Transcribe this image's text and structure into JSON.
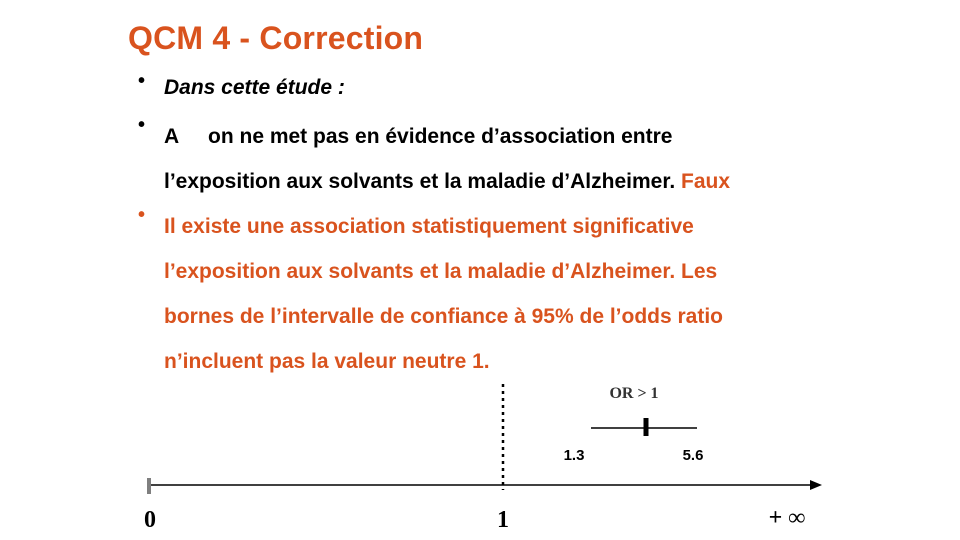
{
  "title": "QCM 4 - Correction",
  "bullets": {
    "b1": "Dans cette étude :",
    "b2_letter": "A",
    "b2_line1": "on ne met pas en évidence d’association entre",
    "b2_line2": "l’exposition aux solvants et la maladie d’Alzheimer.",
    "b2_verdict": "Faux",
    "b3_line1": "Il existe une association statistiquement significative",
    "b3_line2": "l’exposition aux solvants et la maladie d’Alzheimer. Les",
    "b3_line3": "bornes de l’intervalle de confiance à 95%  de l’odds ratio",
    "b3_line4": "n’incluent pas la valeur neutre 1."
  },
  "diagram": {
    "axis_origin_label": "0",
    "neutral_value_label": "1",
    "infinity_label": "+ ∞",
    "ci_title": "OR > 1",
    "ci_lower": "1.3",
    "ci_upper": "5.6"
  },
  "colors": {
    "accent": "#d9531e",
    "text": "#000000",
    "axis_tick": "#7f7f7f"
  }
}
